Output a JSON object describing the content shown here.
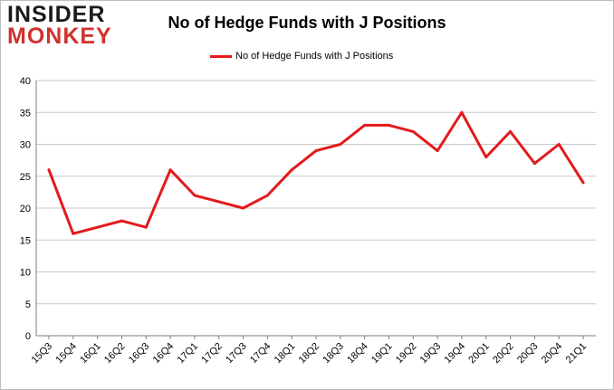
{
  "logo": {
    "line1": "INSIDER",
    "line2": "MONKEY"
  },
  "chart_data": {
    "type": "line",
    "title": "No of Hedge Funds with J Positions",
    "xlabel": "",
    "ylabel": "",
    "categories": [
      "15Q3",
      "15Q4",
      "16Q1",
      "16Q2",
      "16Q3",
      "16Q4",
      "17Q1",
      "17Q2",
      "17Q3",
      "17Q4",
      "18Q1",
      "18Q2",
      "18Q3",
      "18Q4",
      "19Q1",
      "19Q2",
      "19Q3",
      "19Q4",
      "20Q1",
      "20Q2",
      "20Q3",
      "20Q4",
      "21Q1"
    ],
    "series": [
      {
        "name": "No of Hedge Funds with J Positions",
        "values": [
          26,
          16,
          17,
          18,
          17,
          26,
          22,
          21,
          20,
          22,
          26,
          29,
          30,
          33,
          33,
          32,
          29,
          35,
          28,
          32,
          27,
          30,
          24
        ],
        "color": "#e31a1c"
      }
    ],
    "ylim": [
      0,
      40
    ],
    "yticks": [
      0,
      5,
      10,
      15,
      20,
      25,
      30,
      35,
      40
    ],
    "grid": true,
    "legend": "top-center"
  }
}
